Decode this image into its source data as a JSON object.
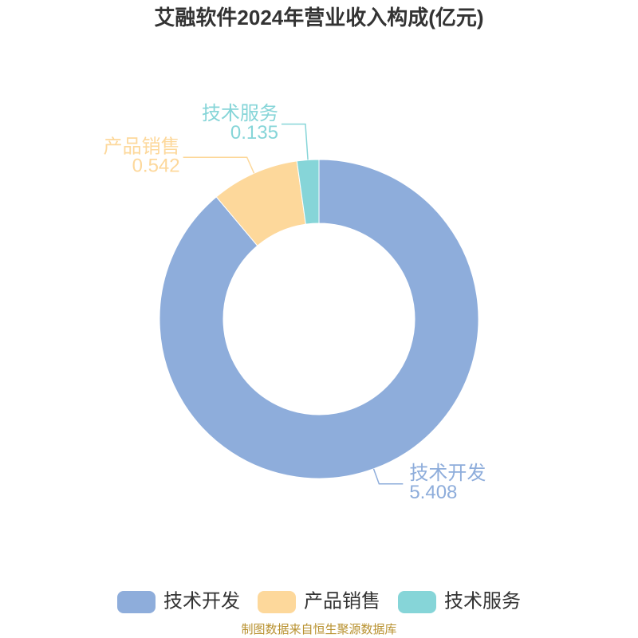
{
  "chart_data": {
    "type": "donut",
    "title": "艾融软件2024年营业收入构成(亿元)",
    "categories": [
      "技术开发",
      "产品销售",
      "技术服务"
    ],
    "values": [
      5.408,
      0.542,
      0.135
    ],
    "colors": [
      "#8eaddb",
      "#fdd89b",
      "#86d5d8"
    ],
    "source": "制图数据来自恒生聚源数据库"
  }
}
